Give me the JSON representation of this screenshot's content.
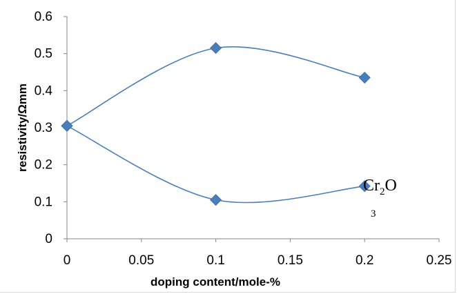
{
  "chart_data": {
    "type": "scatter",
    "xlabel": "doping content/mole-%",
    "ylabel": "resistivity/Ωmm",
    "xlim": [
      0,
      0.25
    ],
    "ylim": [
      0,
      0.6
    ],
    "x_ticks": [
      "0",
      "0.05",
      "0.1",
      "0.15",
      "0.2",
      "0.25"
    ],
    "y_ticks": [
      "0",
      "0.1",
      "0.2",
      "0.3",
      "0.4",
      "0.5",
      "0.6"
    ],
    "grid": false,
    "marker": "diamond",
    "color": "#4a7ebb",
    "series": [
      {
        "x": [
          0,
          0.1,
          0.2
        ],
        "y": [
          0.305,
          0.515,
          0.435
        ],
        "smooth": true
      },
      {
        "x": [
          0,
          0.1,
          0.2
        ],
        "y": [
          0.305,
          0.105,
          0.142
        ],
        "smooth": true
      }
    ],
    "annotation": {
      "main": "Cr",
      "sub1": "2",
      "tail": "O",
      "sub2": "3"
    }
  }
}
